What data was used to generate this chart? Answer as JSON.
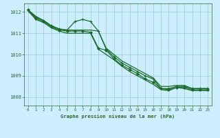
{
  "bg_color": "#cceeff",
  "grid_color": "#99cccc",
  "line_color": "#1a6b2a",
  "axis_color": "#336633",
  "title": "Graphe pression niveau de la mer (hPa)",
  "xlim": [
    -0.5,
    23.5
  ],
  "ylim": [
    1007.6,
    1012.4
  ],
  "yticks": [
    1008,
    1009,
    1010,
    1011,
    1012
  ],
  "xticks": [
    0,
    1,
    2,
    3,
    4,
    5,
    6,
    7,
    8,
    9,
    10,
    11,
    12,
    13,
    14,
    15,
    16,
    17,
    18,
    19,
    20,
    21,
    22,
    23
  ],
  "series": [
    {
      "y": [
        1012.1,
        1011.8,
        1011.6,
        1011.35,
        1011.2,
        1011.15,
        1011.15,
        1011.15,
        1011.15,
        1011.1,
        1010.3,
        1010.0,
        1009.7,
        1009.5,
        1009.3,
        1009.1,
        1008.9,
        1008.5,
        1008.5,
        1008.55,
        1008.55,
        1008.4,
        1008.4,
        1008.4
      ],
      "marker": null,
      "lw": 0.9
    },
    {
      "y": [
        1012.1,
        1011.75,
        1011.6,
        1011.35,
        1011.2,
        1011.15,
        1011.55,
        1011.65,
        1011.55,
        1011.1,
        1010.25,
        1009.9,
        1009.6,
        1009.4,
        1009.2,
        1009.0,
        1008.85,
        1008.4,
        1008.4,
        1008.5,
        1008.5,
        1008.4,
        1008.4,
        1008.4
      ],
      "marker": "+",
      "lw": 0.9
    },
    {
      "y": [
        1012.1,
        1011.7,
        1011.55,
        1011.3,
        1011.15,
        1011.1,
        1011.1,
        1011.1,
        1011.05,
        1010.3,
        1010.2,
        1009.8,
        1009.5,
        1009.3,
        1009.1,
        1008.85,
        1008.7,
        1008.4,
        1008.35,
        1008.45,
        1008.45,
        1008.35,
        1008.35,
        1008.35
      ],
      "marker": "D",
      "lw": 0.9
    },
    {
      "y": [
        1012.05,
        1011.65,
        1011.5,
        1011.25,
        1011.1,
        1011.0,
        1011.0,
        1011.0,
        1011.0,
        1010.25,
        1010.0,
        1009.75,
        1009.45,
        1009.2,
        1009.0,
        1008.8,
        1008.6,
        1008.35,
        1008.3,
        1008.45,
        1008.4,
        1008.3,
        1008.3,
        1008.3
      ],
      "marker": null,
      "lw": 0.9
    }
  ]
}
